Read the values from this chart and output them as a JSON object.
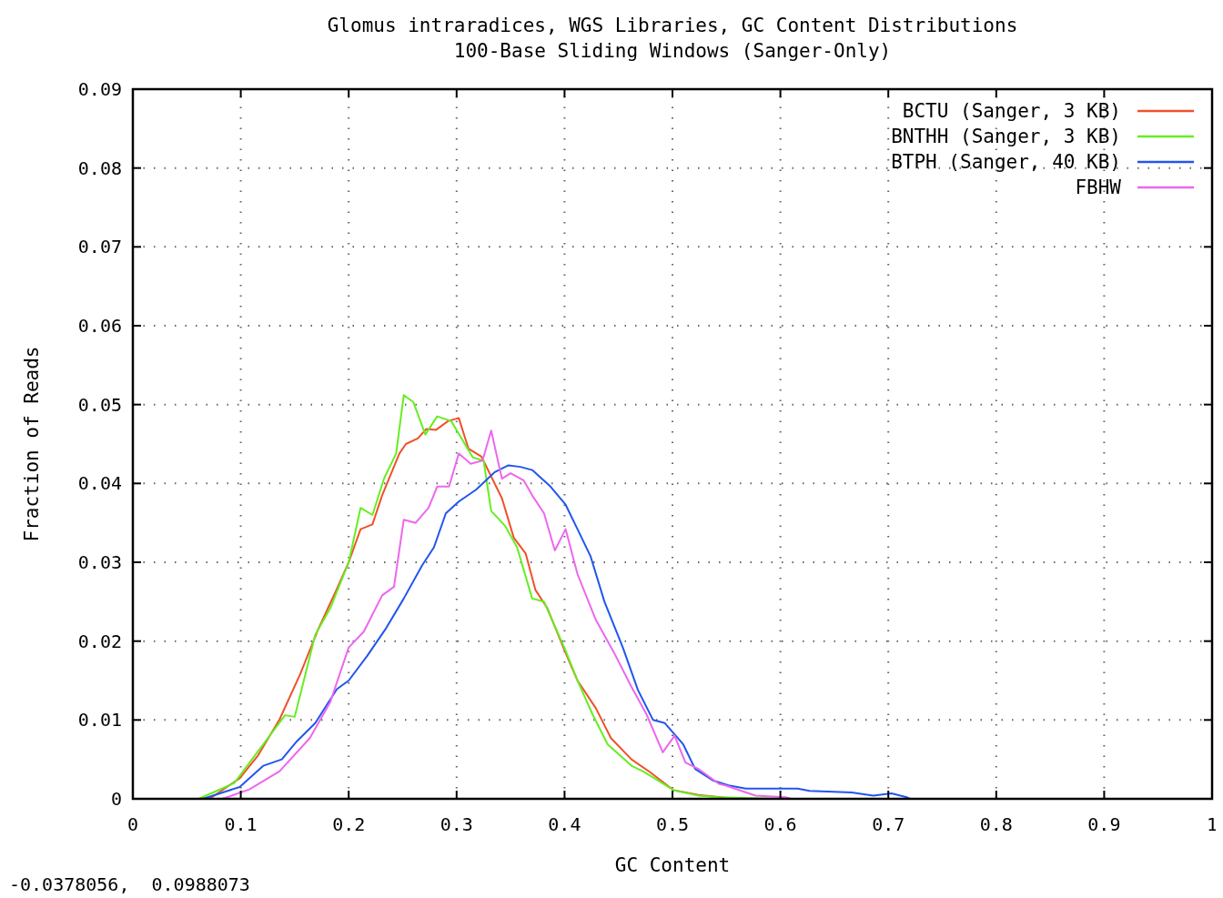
{
  "chart_data": {
    "type": "line",
    "title": "Glomus intraradices, WGS Libraries, GC Content Distributions",
    "subtitle": "100-Base Sliding Windows (Sanger-Only)",
    "xlabel": "GC Content",
    "ylabel": "Fraction of Reads",
    "annotations": [
      "-0.0378056,  0.0988073"
    ],
    "xlim": [
      0,
      1
    ],
    "ylim": [
      0,
      0.09
    ],
    "xticks": [
      0,
      0.1,
      0.2,
      0.3,
      0.4,
      0.5,
      0.6,
      0.7,
      0.8,
      0.9,
      1
    ],
    "yticks": [
      0,
      0.01,
      0.02,
      0.03,
      0.04,
      0.05,
      0.06,
      0.07,
      0.08,
      0.09
    ],
    "grid": true,
    "legend": "top right",
    "marker": "none",
    "line_style": "solid",
    "series": [
      {
        "name": "BCTU (Sanger, 3 KB)",
        "color": "#f0502a",
        "x": [
          0.071,
          0.099,
          0.116,
          0.136,
          0.155,
          0.172,
          0.189,
          0.2,
          0.211,
          0.222,
          0.231,
          0.247,
          0.253,
          0.264,
          0.272,
          0.281,
          0.292,
          0.302,
          0.311,
          0.323,
          0.342,
          0.353,
          0.364,
          0.373,
          0.384,
          0.401,
          0.412,
          0.429,
          0.443,
          0.462,
          0.479,
          0.501,
          0.524,
          0.56
        ],
        "values": [
          0,
          0.0026,
          0.0055,
          0.0101,
          0.0158,
          0.0216,
          0.0266,
          0.03,
          0.0342,
          0.0348,
          0.0385,
          0.0438,
          0.045,
          0.0457,
          0.0469,
          0.0468,
          0.0479,
          0.0483,
          0.0444,
          0.0434,
          0.0381,
          0.0331,
          0.0311,
          0.0265,
          0.0242,
          0.0185,
          0.015,
          0.0115,
          0.0077,
          0.005,
          0.0034,
          0.0011,
          0.0005,
          0
        ]
      },
      {
        "name": "BNTHH (Sanger, 3 KB)",
        "color": "#66ee22",
        "x": [
          0.061,
          0.094,
          0.141,
          0.15,
          0.169,
          0.183,
          0.2,
          0.211,
          0.222,
          0.233,
          0.244,
          0.251,
          0.26,
          0.271,
          0.282,
          0.295,
          0.305,
          0.315,
          0.325,
          0.332,
          0.345,
          0.356,
          0.37,
          0.381,
          0.401,
          0.412,
          0.426,
          0.44,
          0.462,
          0.474,
          0.501,
          0.524,
          0.543,
          0.6
        ],
        "values": [
          0,
          0.002,
          0.0106,
          0.0104,
          0.0208,
          0.0242,
          0.03,
          0.0369,
          0.036,
          0.0407,
          0.0438,
          0.0512,
          0.0503,
          0.0462,
          0.0485,
          0.0479,
          0.0456,
          0.0433,
          0.0429,
          0.0365,
          0.0346,
          0.0319,
          0.0254,
          0.025,
          0.0188,
          0.015,
          0.0107,
          0.0069,
          0.0042,
          0.0034,
          0.0011,
          0.0004,
          0.0002,
          0
        ]
      },
      {
        "name": "BTPH (Sanger, 40 KB)",
        "color": "#2255ee",
        "x": [
          0.065,
          0.099,
          0.121,
          0.138,
          0.152,
          0.169,
          0.189,
          0.2,
          0.217,
          0.234,
          0.251,
          0.268,
          0.279,
          0.29,
          0.302,
          0.318,
          0.335,
          0.348,
          0.359,
          0.37,
          0.387,
          0.401,
          0.412,
          0.424,
          0.437,
          0.454,
          0.468,
          0.482,
          0.493,
          0.51,
          0.521,
          0.538,
          0.552,
          0.568,
          0.6,
          0.616,
          0.627,
          0.666,
          0.686,
          0.703,
          0.717,
          0.72
        ],
        "values": [
          0,
          0.0015,
          0.0042,
          0.005,
          0.0073,
          0.0096,
          0.0139,
          0.015,
          0.0181,
          0.0215,
          0.0254,
          0.0296,
          0.0319,
          0.0362,
          0.0377,
          0.0392,
          0.0414,
          0.0423,
          0.0421,
          0.0417,
          0.0396,
          0.0373,
          0.0342,
          0.0308,
          0.025,
          0.0192,
          0.0138,
          0.01,
          0.0096,
          0.0069,
          0.0038,
          0.0023,
          0.0017,
          0.0013,
          0.0013,
          0.0013,
          0.001,
          0.0008,
          0.0004,
          0.0007,
          0.0002,
          0
        ]
      },
      {
        "name": "FBHW",
        "color": "#ee66ee",
        "x": [
          0.083,
          0.108,
          0.136,
          0.164,
          0.183,
          0.2,
          0.214,
          0.231,
          0.242,
          0.251,
          0.262,
          0.274,
          0.282,
          0.293,
          0.302,
          0.313,
          0.324,
          0.332,
          0.342,
          0.35,
          0.362,
          0.37,
          0.381,
          0.391,
          0.401,
          0.412,
          0.429,
          0.446,
          0.462,
          0.476,
          0.491,
          0.502,
          0.512,
          0.524,
          0.543,
          0.549,
          0.577,
          0.605,
          0.61
        ],
        "values": [
          0,
          0.0012,
          0.0035,
          0.0077,
          0.0123,
          0.0192,
          0.0212,
          0.0258,
          0.0269,
          0.0354,
          0.035,
          0.0369,
          0.0396,
          0.0396,
          0.0438,
          0.0425,
          0.0429,
          0.0467,
          0.0406,
          0.0413,
          0.0404,
          0.0385,
          0.0362,
          0.0315,
          0.0342,
          0.0285,
          0.0227,
          0.0185,
          0.0142,
          0.0107,
          0.0059,
          0.008,
          0.0046,
          0.0038,
          0.0019,
          0.0017,
          0.0004,
          0.0002,
          0
        ]
      }
    ]
  }
}
